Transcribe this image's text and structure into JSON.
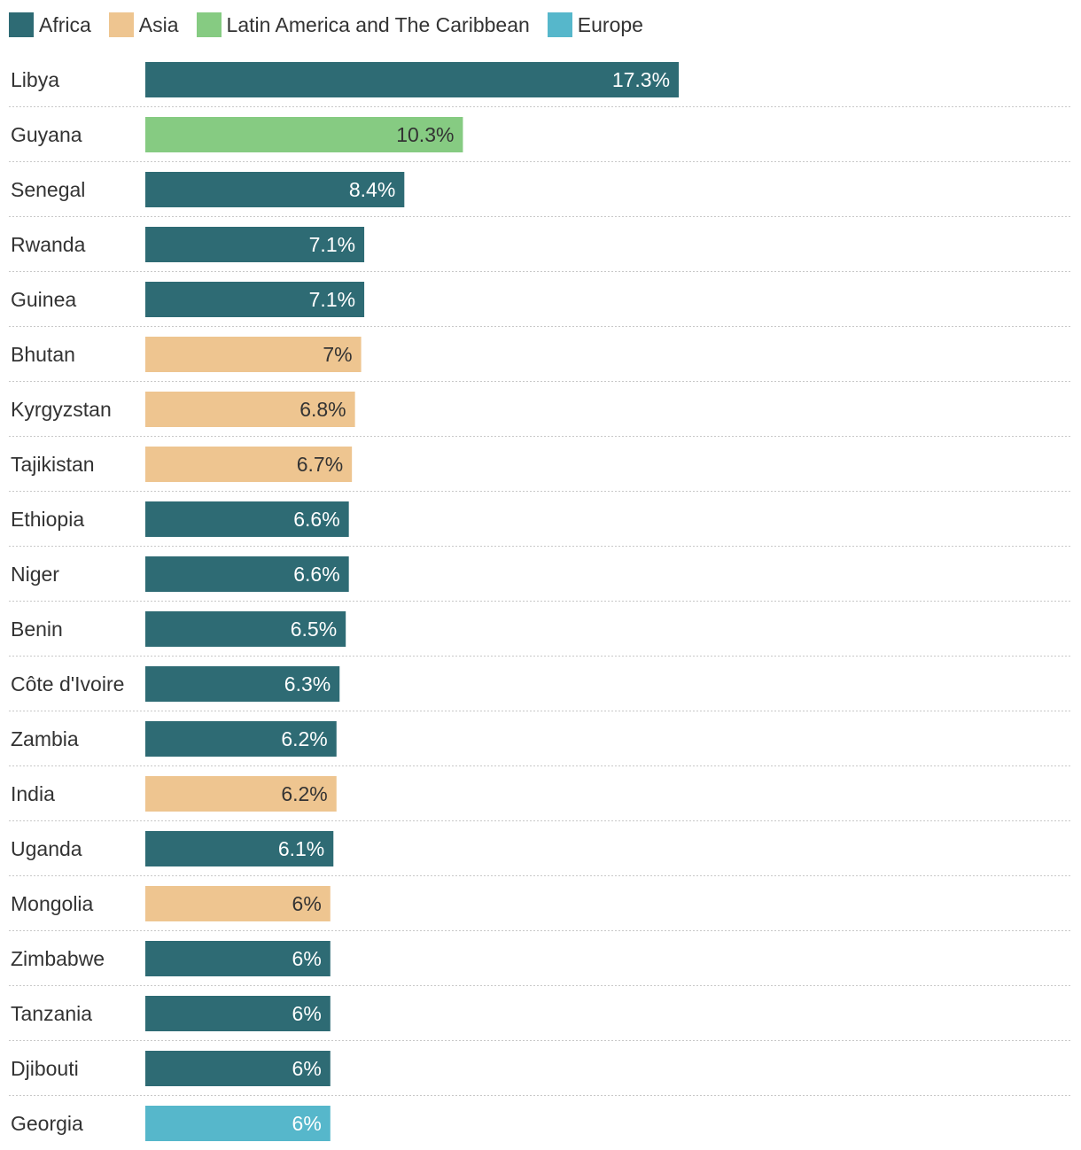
{
  "chart_data": {
    "type": "bar",
    "orientation": "horizontal",
    "title": "",
    "xlabel": "",
    "ylabel": "",
    "xlim": [
      0,
      30
    ],
    "grid": false,
    "legend_position": "top-left",
    "legend": [
      {
        "key": "africa",
        "label": "Africa",
        "color": "#2e6b74"
      },
      {
        "key": "asia",
        "label": "Asia",
        "color": "#eec590"
      },
      {
        "key": "latam",
        "label": "Latin America and The Caribbean",
        "color": "#86cb82"
      },
      {
        "key": "europe",
        "label": "Europe",
        "color": "#56b7cb"
      }
    ],
    "bars": [
      {
        "category": "Libya",
        "value": 17.3,
        "label": "17.3%",
        "region": "africa"
      },
      {
        "category": "Guyana",
        "value": 10.3,
        "label": "10.3%",
        "region": "latam"
      },
      {
        "category": "Senegal",
        "value": 8.4,
        "label": "8.4%",
        "region": "africa"
      },
      {
        "category": "Rwanda",
        "value": 7.1,
        "label": "7.1%",
        "region": "africa"
      },
      {
        "category": "Guinea",
        "value": 7.1,
        "label": "7.1%",
        "region": "africa"
      },
      {
        "category": "Bhutan",
        "value": 7,
        "label": "7%",
        "region": "asia"
      },
      {
        "category": "Kyrgyzstan",
        "value": 6.8,
        "label": "6.8%",
        "region": "asia"
      },
      {
        "category": "Tajikistan",
        "value": 6.7,
        "label": "6.7%",
        "region": "asia"
      },
      {
        "category": "Ethiopia",
        "value": 6.6,
        "label": "6.6%",
        "region": "africa"
      },
      {
        "category": "Niger",
        "value": 6.6,
        "label": "6.6%",
        "region": "africa"
      },
      {
        "category": "Benin",
        "value": 6.5,
        "label": "6.5%",
        "region": "africa"
      },
      {
        "category": "Côte d'Ivoire",
        "value": 6.3,
        "label": "6.3%",
        "region": "africa"
      },
      {
        "category": "Zambia",
        "value": 6.2,
        "label": "6.2%",
        "region": "africa"
      },
      {
        "category": "India",
        "value": 6.2,
        "label": "6.2%",
        "region": "asia"
      },
      {
        "category": "Uganda",
        "value": 6.1,
        "label": "6.1%",
        "region": "africa"
      },
      {
        "category": "Mongolia",
        "value": 6,
        "label": "6%",
        "region": "asia"
      },
      {
        "category": "Zimbabwe",
        "value": 6,
        "label": "6%",
        "region": "africa"
      },
      {
        "category": "Tanzania",
        "value": 6,
        "label": "6%",
        "region": "africa"
      },
      {
        "category": "Djibouti",
        "value": 6,
        "label": "6%",
        "region": "africa"
      },
      {
        "category": "Georgia",
        "value": 6,
        "label": "6%",
        "region": "europe"
      }
    ],
    "label_colors": {
      "africa": "#ffffff",
      "asia": "#333333",
      "latam": "#333333",
      "europe": "#ffffff"
    }
  }
}
